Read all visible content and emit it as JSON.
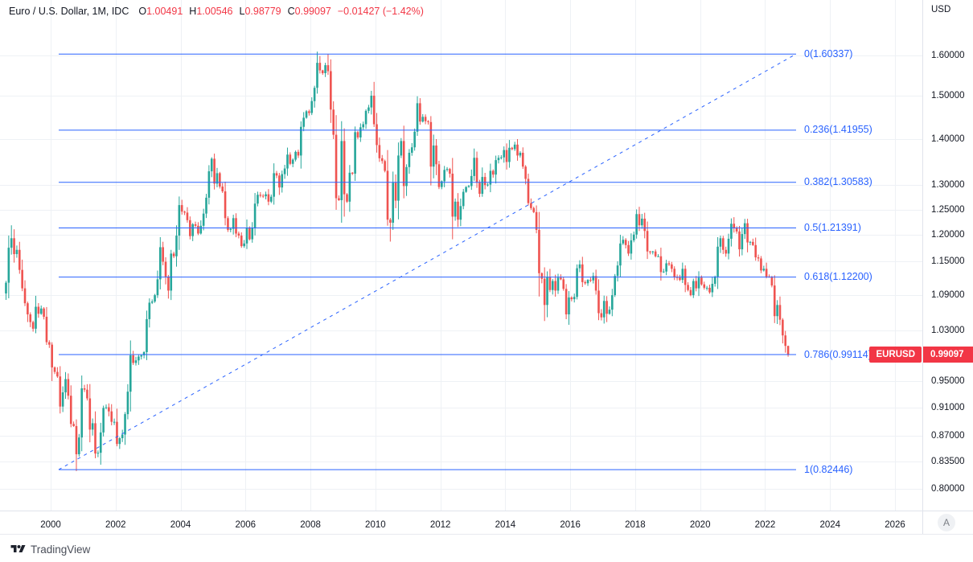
{
  "legend": {
    "title": "Euro / U.S. Dollar, 1M, IDC",
    "ohlc": [
      {
        "k": "O",
        "v": "1.00491"
      },
      {
        "k": "H",
        "v": "1.00546"
      },
      {
        "k": "L",
        "v": "0.98779"
      },
      {
        "k": "C",
        "v": "0.99097"
      }
    ],
    "change": "−0.01427 (−1.42%)"
  },
  "price_scale": {
    "currency": "USD",
    "last_price": "0.99097",
    "last_price_value": 0.99097,
    "symbol_badge": "EURUSD",
    "a_button": "A",
    "ticks": [
      {
        "label": "1.60000",
        "value": 1.6
      },
      {
        "label": "1.50000",
        "value": 1.5
      },
      {
        "label": "1.40000",
        "value": 1.4
      },
      {
        "label": "1.30000",
        "value": 1.3
      },
      {
        "label": "1.25000",
        "value": 1.25
      },
      {
        "label": "1.20000",
        "value": 1.2
      },
      {
        "label": "1.15000",
        "value": 1.15
      },
      {
        "label": "1.09000",
        "value": 1.09
      },
      {
        "label": "1.03000",
        "value": 1.03
      },
      {
        "label": "0.95000",
        "value": 0.95
      },
      {
        "label": "0.91000",
        "value": 0.91
      },
      {
        "label": "0.87000",
        "value": 0.87
      },
      {
        "label": "0.83500",
        "value": 0.835
      },
      {
        "label": "0.80000",
        "value": 0.8
      }
    ]
  },
  "time_scale": {
    "years": [
      "2000",
      "2002",
      "2004",
      "2006",
      "2008",
      "2010",
      "2012",
      "2014",
      "2016",
      "2018",
      "2020",
      "2022",
      "2024",
      "2026"
    ]
  },
  "footer": {
    "logo_text": "TradingView"
  },
  "colors": {
    "up": "#26a69a",
    "down": "#ef5350",
    "fib_blue": "#2962ff",
    "accent_red": "#f23645",
    "grid": "#eef1f5",
    "text": "#131722",
    "border": "#e0e3eb"
  },
  "chart_data": {
    "type": "candlestick",
    "title": "Euro / U.S. Dollar, 1M, IDC",
    "symbol": "EURUSD",
    "timeframe": "1M",
    "y_scale": "log",
    "ylim": [
      0.78,
      1.65
    ],
    "x_range_years": [
      1998.6,
      2026.8
    ],
    "start": "1998-08",
    "interval_months": 1,
    "first_open": 1.093,
    "closes": [
      1.112,
      1.176,
      1.194,
      1.164,
      1.172,
      1.135,
      1.102,
      1.076,
      1.057,
      1.044,
      1.033,
      1.07,
      1.058,
      1.067,
      1.053,
      1.011,
      1.007,
      0.971,
      0.964,
      0.957,
      0.912,
      0.933,
      0.953,
      0.928,
      0.887,
      0.884,
      0.845,
      0.868,
      0.939,
      0.937,
      0.924,
      0.879,
      0.888,
      0.846,
      0.847,
      0.875,
      0.91,
      0.911,
      0.905,
      0.89,
      0.89,
      0.859,
      0.867,
      0.872,
      0.901,
      0.934,
      0.99,
      0.978,
      0.982,
      0.988,
      0.99,
      0.995,
      1.049,
      1.077,
      1.079,
      1.09,
      1.118,
      1.177,
      1.15,
      1.123,
      1.098,
      1.165,
      1.16,
      1.199,
      1.259,
      1.246,
      1.244,
      1.229,
      1.198,
      1.221,
      1.218,
      1.203,
      1.218,
      1.242,
      1.274,
      1.329,
      1.356,
      1.303,
      1.325,
      1.297,
      1.287,
      1.233,
      1.21,
      1.212,
      1.233,
      1.203,
      1.199,
      1.179,
      1.184,
      1.214,
      1.192,
      1.214,
      1.262,
      1.28,
      1.278,
      1.277,
      1.281,
      1.266,
      1.276,
      1.325,
      1.32,
      1.295,
      1.323,
      1.335,
      1.365,
      1.345,
      1.354,
      1.371,
      1.363,
      1.427,
      1.448,
      1.463,
      1.459,
      1.487,
      1.519,
      1.581,
      1.562,
      1.555,
      1.575,
      1.56,
      1.467,
      1.409,
      1.273,
      1.269,
      1.395,
      1.281,
      1.266,
      1.326,
      1.324,
      1.415,
      1.403,
      1.426,
      1.433,
      1.464,
      1.472,
      1.5,
      1.433,
      1.386,
      1.357,
      1.351,
      1.33,
      1.23,
      1.224,
      1.305,
      1.268,
      1.363,
      1.395,
      1.298,
      1.338,
      1.369,
      1.381,
      1.416,
      1.482,
      1.439,
      1.45,
      1.44,
      1.438,
      1.339,
      1.385,
      1.344,
      1.296,
      1.308,
      1.332,
      1.334,
      1.324,
      1.236,
      1.266,
      1.23,
      1.257,
      1.286,
      1.296,
      1.298,
      1.319,
      1.358,
      1.305,
      1.282,
      1.317,
      1.3,
      1.301,
      1.33,
      1.322,
      1.353,
      1.358,
      1.359,
      1.375,
      1.349,
      1.38,
      1.377,
      1.387,
      1.363,
      1.369,
      1.339,
      1.313,
      1.263,
      1.253,
      1.245,
      1.21,
      1.129,
      1.119,
      1.073,
      1.122,
      1.099,
      1.115,
      1.098,
      1.121,
      1.118,
      1.101,
      1.057,
      1.086,
      1.083,
      1.087,
      1.138,
      1.145,
      1.113,
      1.111,
      1.117,
      1.116,
      1.124,
      1.098,
      1.059,
      1.052,
      1.08,
      1.058,
      1.065,
      1.09,
      1.124,
      1.143,
      1.184,
      1.191,
      1.181,
      1.165,
      1.19,
      1.201,
      1.241,
      1.219,
      1.232,
      1.208,
      1.169,
      1.168,
      1.169,
      1.16,
      1.16,
      1.131,
      1.132,
      1.147,
      1.145,
      1.137,
      1.122,
      1.121,
      1.117,
      1.137,
      1.108,
      1.099,
      1.09,
      1.115,
      1.102,
      1.121,
      1.109,
      1.103,
      1.103,
      1.095,
      1.11,
      1.123,
      1.178,
      1.194,
      1.172,
      1.165,
      1.193,
      1.222,
      1.213,
      1.207,
      1.173,
      1.202,
      1.223,
      1.186,
      1.187,
      1.181,
      1.158,
      1.156,
      1.134,
      1.137,
      1.123,
      1.122,
      1.107,
      1.054,
      1.073,
      1.048,
      1.022,
      1.005,
      0.99097
    ],
    "last_candle": {
      "open": 1.00491,
      "high": 1.00546,
      "low": 0.98779,
      "close": 0.99097
    },
    "wick_overrides": {
      "2": {
        "high": 1.219
      },
      "26": {
        "low": 0.8225
      },
      "116": {
        "high": 1.598
      },
      "119": {
        "high": 1.6034
      },
      "142": {
        "low": 1.1876
      },
      "153": {
        "high": 1.494
      },
      "189": {
        "high": 1.3993
      },
      "199": {
        "low": 1.0458
      },
      "234": {
        "high": 1.2556
      },
      "269": {
        "high": 1.2349
      }
    },
    "fib_retracement": {
      "levels": [
        {
          "ratio": "0",
          "price_label": "1.60337",
          "value": 1.60337
        },
        {
          "ratio": "0.236",
          "price_label": "1.41955",
          "value": 1.41955
        },
        {
          "ratio": "0.382",
          "price_label": "1.30583",
          "value": 1.30583
        },
        {
          "ratio": "0.5",
          "price_label": "1.21391",
          "value": 1.21391
        },
        {
          "ratio": "0.618",
          "price_label": "1.12200",
          "value": 1.122
        },
        {
          "ratio": "0.786",
          "price_label": "0.99114",
          "value": 0.99114
        },
        {
          "ratio": "1",
          "price_label": "0.82446",
          "value": 0.82446
        }
      ],
      "trendline": {
        "start_price": 0.82446,
        "end_price": 1.60337,
        "style": "dashed"
      }
    }
  }
}
